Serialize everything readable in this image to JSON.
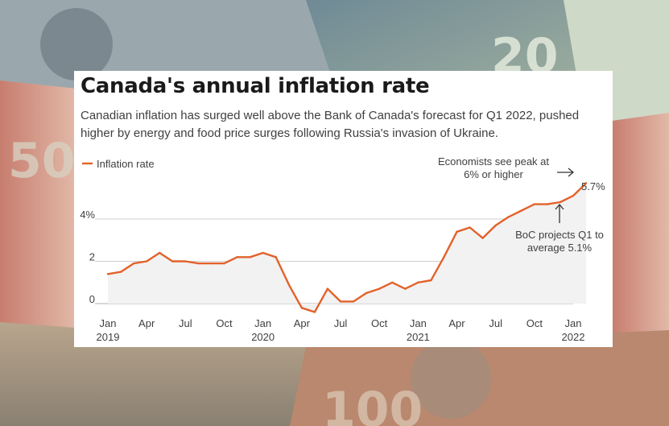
{
  "colors": {
    "line": "#e2622a",
    "area": "#f2f2f2",
    "grid": "#bfbfbf",
    "text": "#404040",
    "title": "#1a1a1a"
  },
  "chart_data": {
    "type": "line",
    "title": "Canada's annual inflation rate",
    "subtitle": "Canadian inflation has surged well above the Bank of Canada's forecast for Q1 2022, pushed higher by energy and food price surges following Russia's invasion of Ukraine.",
    "legend": "Inflation rate",
    "legend_position": "top-left",
    "series": [
      {
        "name": "Inflation rate",
        "x": [
          "2019-01",
          "2019-02",
          "2019-03",
          "2019-04",
          "2019-05",
          "2019-06",
          "2019-07",
          "2019-08",
          "2019-09",
          "2019-10",
          "2019-11",
          "2019-12",
          "2020-01",
          "2020-02",
          "2020-03",
          "2020-04",
          "2020-05",
          "2020-06",
          "2020-07",
          "2020-08",
          "2020-09",
          "2020-10",
          "2020-11",
          "2020-12",
          "2021-01",
          "2021-02",
          "2021-03",
          "2021-04",
          "2021-05",
          "2021-06",
          "2021-07",
          "2021-08",
          "2021-09",
          "2021-10",
          "2021-11",
          "2021-12",
          "2022-01",
          "2022-02"
        ],
        "values": [
          1.4,
          1.5,
          1.9,
          2.0,
          2.4,
          2.0,
          2.0,
          1.9,
          1.9,
          1.9,
          2.2,
          2.2,
          2.4,
          2.2,
          0.9,
          -0.2,
          -0.4,
          0.7,
          0.1,
          0.1,
          0.5,
          0.7,
          1.0,
          0.7,
          1.0,
          1.1,
          2.2,
          3.4,
          3.6,
          3.1,
          3.7,
          4.1,
          4.4,
          4.7,
          4.7,
          4.8,
          5.1,
          5.7
        ]
      }
    ],
    "x_ticks": [
      {
        "month": "Jan",
        "year": "2019"
      },
      {
        "month": "Apr",
        "year": ""
      },
      {
        "month": "Jul",
        "year": ""
      },
      {
        "month": "Oct",
        "year": ""
      },
      {
        "month": "Jan",
        "year": "2020"
      },
      {
        "month": "Apr",
        "year": ""
      },
      {
        "month": "Jul",
        "year": ""
      },
      {
        "month": "Oct",
        "year": ""
      },
      {
        "month": "Jan",
        "year": "2021"
      },
      {
        "month": "Apr",
        "year": ""
      },
      {
        "month": "Jul",
        "year": ""
      },
      {
        "month": "Oct",
        "year": ""
      },
      {
        "month": "Jan",
        "year": "2022"
      }
    ],
    "y_ticks": [
      {
        "value": 0,
        "label": "0"
      },
      {
        "value": 2,
        "label": "2"
      },
      {
        "value": 4,
        "label": "4%"
      }
    ],
    "ylim": [
      -0.6,
      6.2
    ],
    "grid": true,
    "annotations": {
      "peak": [
        "Economists see peak at",
        "6% or higher"
      ],
      "last_value": "5.7%",
      "boc": [
        "BoC projects Q1 to",
        "average 5.1%"
      ]
    }
  }
}
